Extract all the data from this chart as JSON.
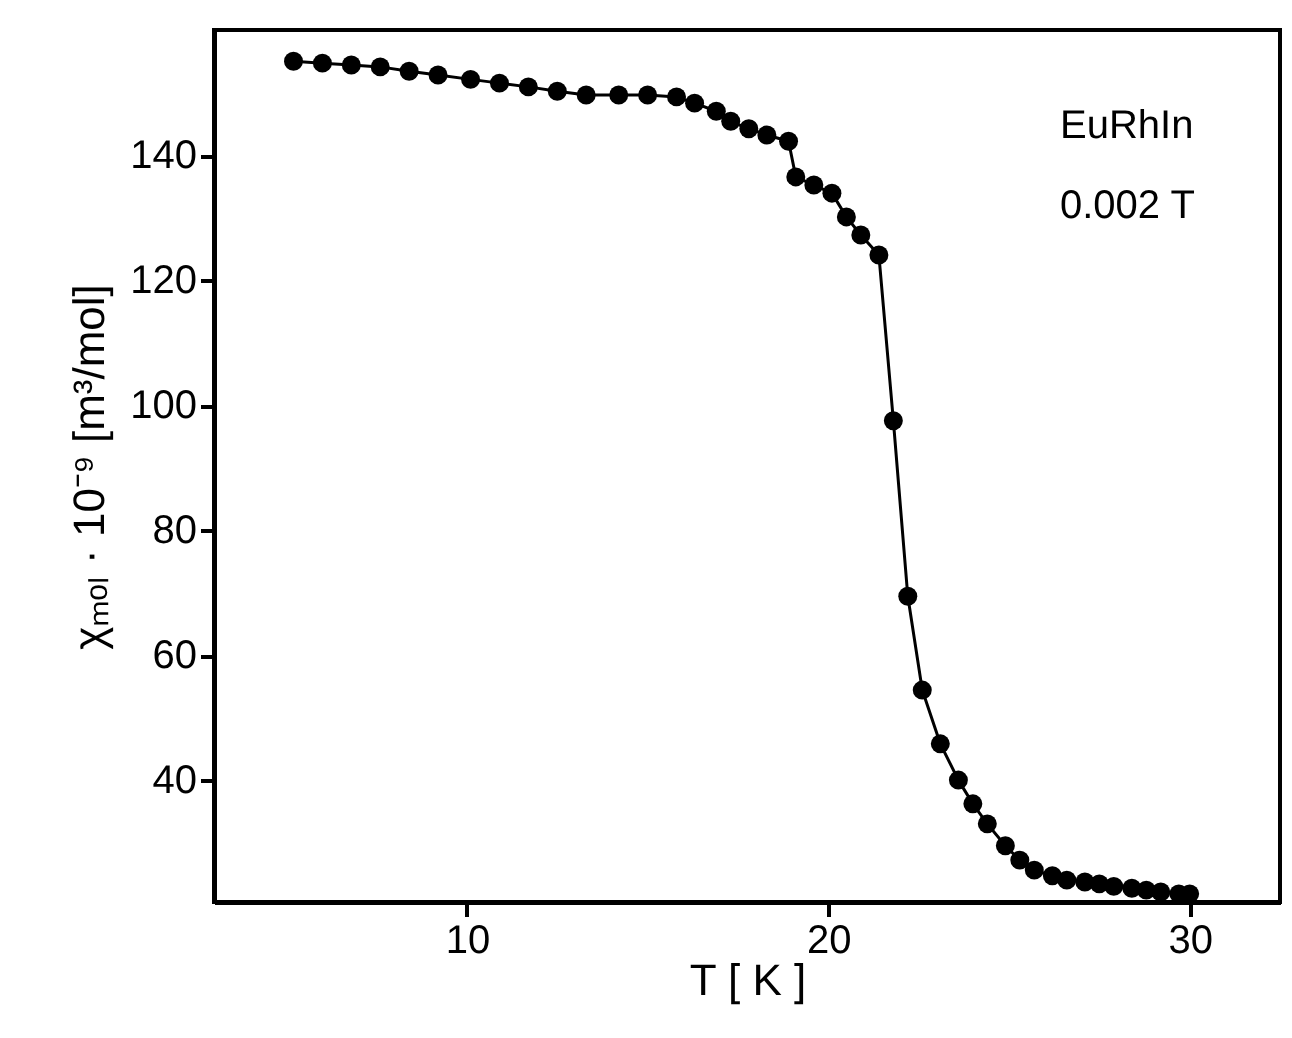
{
  "chart_data": {
    "type": "line",
    "xlabel": "T [ K ]",
    "ylabel": "χₘₒₗ · 10⁻⁹ [m³/mol]",
    "x": [
      5.2,
      6.0,
      6.8,
      7.6,
      8.4,
      9.2,
      10.1,
      10.9,
      11.7,
      12.5,
      13.3,
      14.2,
      15.0,
      15.8,
      16.3,
      16.9,
      17.3,
      17.8,
      18.3,
      18.9,
      19.1,
      19.6,
      20.1,
      20.5,
      20.9,
      21.4,
      21.8,
      22.2,
      22.6,
      23.1,
      23.6,
      24.0,
      24.4,
      24.9,
      25.3,
      25.7,
      26.2,
      26.6,
      27.1,
      27.5,
      27.9,
      28.4,
      28.8,
      29.2,
      29.7,
      30.0
    ],
    "series": [
      {
        "color": "#000000",
        "values": [
          155.0,
          154.7,
          154.4,
          154.1,
          153.4,
          152.8,
          152.1,
          151.5,
          150.9,
          150.2,
          149.6,
          149.6,
          149.6,
          149.3,
          148.3,
          147.0,
          145.4,
          144.2,
          143.2,
          142.2,
          136.5,
          135.2,
          133.9,
          130.1,
          127.2,
          124.0,
          97.5,
          69.4,
          54.4,
          45.8,
          40.0,
          36.2,
          33.0,
          29.5,
          27.2,
          25.6,
          24.7,
          24.0,
          23.7,
          23.4,
          23.0,
          22.7,
          22.4,
          22.1,
          21.8,
          21.8
        ]
      }
    ],
    "xlim": [
      3,
      32.5
    ],
    "xticks": [
      10,
      20,
      30
    ],
    "ylim": [
      20.5,
      160
    ],
    "yticks": [
      40,
      60,
      80,
      100,
      120,
      140
    ],
    "annotations": [
      "EuRhIn",
      "0.002 T"
    ],
    "marker": "circle",
    "line_style": "solid",
    "grid": false
  }
}
